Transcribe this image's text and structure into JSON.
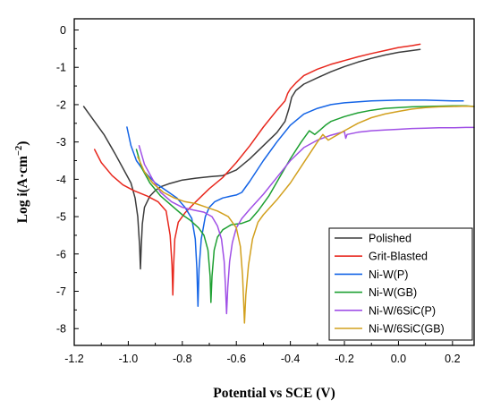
{
  "chart_data": {
    "type": "line",
    "title": "",
    "xlabel": "Potential vs SCE (V)",
    "ylabel": "Log i(A·cm⁻²)",
    "ylabel_parts": {
      "main": "Log i(A·cm",
      "sup": "−2",
      "close": ")"
    },
    "xlim": [
      -1.2,
      0.28
    ],
    "ylim": [
      -8.45,
      0.3
    ],
    "xticks": [
      -1.2,
      -1.0,
      -0.8,
      -0.6,
      -0.4,
      -0.2,
      0.0,
      0.2
    ],
    "xtick_labels": [
      "-1.2",
      "-1.0",
      "-0.8",
      "-0.6",
      "-0.4",
      "-0.2",
      "0.0",
      "0.2"
    ],
    "yticks": [
      0,
      -1,
      -2,
      -3,
      -4,
      -5,
      -6,
      -7,
      -8
    ],
    "ytick_labels": [
      "0",
      "-1",
      "-2",
      "-3",
      "-4",
      "-5",
      "-6",
      "-7",
      "-8"
    ],
    "grid": false,
    "legend_position": "bottom-right",
    "series": [
      {
        "name": "Polished",
        "color": "#3c3c3c",
        "x": [
          -1.165,
          -1.13,
          -1.09,
          -1.05,
          -1.02,
          -0.99,
          -0.975,
          -0.965,
          -0.958,
          -0.955,
          -0.952,
          -0.948,
          -0.94,
          -0.92,
          -0.9,
          -0.88,
          -0.85,
          -0.82,
          -0.8,
          -0.75,
          -0.7,
          -0.65,
          -0.6,
          -0.55,
          -0.5,
          -0.45,
          -0.42,
          -0.405,
          -0.395,
          -0.38,
          -0.35,
          -0.3,
          -0.25,
          -0.2,
          -0.15,
          -0.1,
          -0.05,
          0.0,
          0.05,
          0.08
        ],
        "y": [
          -2.05,
          -2.4,
          -2.8,
          -3.3,
          -3.7,
          -4.1,
          -4.5,
          -5.0,
          -5.8,
          -6.4,
          -5.8,
          -5.2,
          -4.75,
          -4.45,
          -4.3,
          -4.2,
          -4.12,
          -4.06,
          -4.02,
          -3.97,
          -3.93,
          -3.9,
          -3.75,
          -3.45,
          -3.1,
          -2.75,
          -2.45,
          -2.1,
          -1.8,
          -1.62,
          -1.45,
          -1.28,
          -1.12,
          -0.98,
          -0.86,
          -0.76,
          -0.67,
          -0.6,
          -0.55,
          -0.52
        ]
      },
      {
        "name": "Grit-Blasted",
        "color": "#e8281e",
        "x": [
          -1.125,
          -1.1,
          -1.06,
          -1.02,
          -0.98,
          -0.93,
          -0.89,
          -0.86,
          -0.845,
          -0.838,
          -0.835,
          -0.832,
          -0.828,
          -0.815,
          -0.79,
          -0.75,
          -0.7,
          -0.65,
          -0.6,
          -0.55,
          -0.5,
          -0.45,
          -0.42,
          -0.41,
          -0.4,
          -0.38,
          -0.35,
          -0.3,
          -0.25,
          -0.2,
          -0.15,
          -0.1,
          -0.05,
          0.0,
          0.05,
          0.08
        ],
        "y": [
          -3.2,
          -3.55,
          -3.9,
          -4.15,
          -4.3,
          -4.45,
          -4.6,
          -4.85,
          -5.5,
          -6.3,
          -7.1,
          -6.3,
          -5.6,
          -5.15,
          -4.9,
          -4.6,
          -4.25,
          -3.95,
          -3.55,
          -3.1,
          -2.6,
          -2.15,
          -1.9,
          -1.7,
          -1.58,
          -1.42,
          -1.22,
          -1.05,
          -0.92,
          -0.82,
          -0.72,
          -0.63,
          -0.55,
          -0.47,
          -0.42,
          -0.38
        ]
      },
      {
        "name": "Ni-W(P)",
        "color": "#1464e6",
        "x": [
          -1.005,
          -0.99,
          -0.97,
          -0.94,
          -0.9,
          -0.86,
          -0.82,
          -0.79,
          -0.765,
          -0.752,
          -0.746,
          -0.742,
          -0.738,
          -0.73,
          -0.715,
          -0.7,
          -0.68,
          -0.65,
          -0.62,
          -0.6,
          -0.58,
          -0.55,
          -0.5,
          -0.45,
          -0.4,
          -0.35,
          -0.3,
          -0.25,
          -0.2,
          -0.1,
          0.0,
          0.1,
          0.2,
          0.24
        ],
        "y": [
          -2.6,
          -3.1,
          -3.5,
          -3.8,
          -4.1,
          -4.3,
          -4.5,
          -4.75,
          -5.05,
          -5.6,
          -6.4,
          -7.4,
          -6.4,
          -5.6,
          -5.0,
          -4.75,
          -4.6,
          -4.5,
          -4.45,
          -4.42,
          -4.35,
          -4.05,
          -3.5,
          -3.0,
          -2.55,
          -2.25,
          -2.1,
          -2.0,
          -1.95,
          -1.9,
          -1.88,
          -1.88,
          -1.9,
          -1.9
        ]
      },
      {
        "name": "Ni-W(GB)",
        "color": "#1ea032",
        "x": [
          -0.97,
          -0.95,
          -0.92,
          -0.88,
          -0.84,
          -0.8,
          -0.77,
          -0.74,
          -0.72,
          -0.705,
          -0.697,
          -0.694,
          -0.69,
          -0.682,
          -0.67,
          -0.65,
          -0.62,
          -0.6,
          -0.58,
          -0.55,
          -0.52,
          -0.48,
          -0.44,
          -0.4,
          -0.36,
          -0.33,
          -0.31,
          -0.29,
          -0.27,
          -0.25,
          -0.2,
          -0.15,
          -0.1,
          -0.05,
          0.0,
          0.05,
          0.1,
          0.15,
          0.2,
          0.25,
          0.28
        ],
        "y": [
          -3.2,
          -3.7,
          -4.1,
          -4.45,
          -4.7,
          -4.95,
          -5.1,
          -5.3,
          -5.5,
          -5.9,
          -6.6,
          -7.3,
          -6.6,
          -5.9,
          -5.55,
          -5.35,
          -5.22,
          -5.2,
          -5.18,
          -5.1,
          -4.85,
          -4.45,
          -3.95,
          -3.45,
          -3.0,
          -2.7,
          -2.8,
          -2.68,
          -2.55,
          -2.45,
          -2.32,
          -2.22,
          -2.15,
          -2.1,
          -2.08,
          -2.06,
          -2.05,
          -2.04,
          -2.03,
          -2.03,
          -2.05
        ]
      },
      {
        "name": "Ni-W/6SiC(P)",
        "color": "#a050e6",
        "x": [
          -0.96,
          -0.94,
          -0.91,
          -0.88,
          -0.84,
          -0.8,
          -0.76,
          -0.72,
          -0.69,
          -0.67,
          -0.655,
          -0.645,
          -0.64,
          -0.636,
          -0.632,
          -0.625,
          -0.615,
          -0.6,
          -0.58,
          -0.55,
          -0.5,
          -0.45,
          -0.4,
          -0.35,
          -0.3,
          -0.25,
          -0.2,
          -0.195,
          -0.19,
          -0.15,
          -0.1,
          -0.05,
          0.0,
          0.05,
          0.1,
          0.15,
          0.2,
          0.25,
          0.28
        ],
        "y": [
          -3.1,
          -3.6,
          -4.0,
          -4.35,
          -4.6,
          -4.75,
          -4.82,
          -4.88,
          -5.0,
          -5.25,
          -5.6,
          -6.2,
          -6.9,
          -7.6,
          -6.9,
          -6.2,
          -5.7,
          -5.3,
          -5.05,
          -4.8,
          -4.4,
          -3.95,
          -3.5,
          -3.15,
          -2.95,
          -2.82,
          -2.72,
          -2.9,
          -2.8,
          -2.74,
          -2.7,
          -2.68,
          -2.66,
          -2.64,
          -2.63,
          -2.62,
          -2.62,
          -2.61,
          -2.61
        ]
      },
      {
        "name": "Ni-W/6SiC(GB)",
        "color": "#d2a01e",
        "x": [
          -0.965,
          -0.94,
          -0.91,
          -0.87,
          -0.83,
          -0.79,
          -0.75,
          -0.71,
          -0.67,
          -0.63,
          -0.6,
          -0.585,
          -0.577,
          -0.573,
          -0.57,
          -0.565,
          -0.555,
          -0.54,
          -0.52,
          -0.5,
          -0.45,
          -0.4,
          -0.35,
          -0.3,
          -0.28,
          -0.26,
          -0.2,
          -0.15,
          -0.1,
          -0.05,
          0.0,
          0.05,
          0.1,
          0.15,
          0.2,
          0.25,
          0.28
        ],
        "y": [
          -3.4,
          -3.8,
          -4.1,
          -4.35,
          -4.5,
          -4.6,
          -4.65,
          -4.75,
          -4.85,
          -5.0,
          -5.3,
          -5.8,
          -6.6,
          -7.3,
          -7.85,
          -7.1,
          -6.3,
          -5.6,
          -5.15,
          -4.95,
          -4.55,
          -4.1,
          -3.55,
          -3.0,
          -2.8,
          -2.95,
          -2.7,
          -2.5,
          -2.35,
          -2.25,
          -2.18,
          -2.12,
          -2.08,
          -2.06,
          -2.05,
          -2.04,
          -2.05
        ]
      }
    ]
  }
}
